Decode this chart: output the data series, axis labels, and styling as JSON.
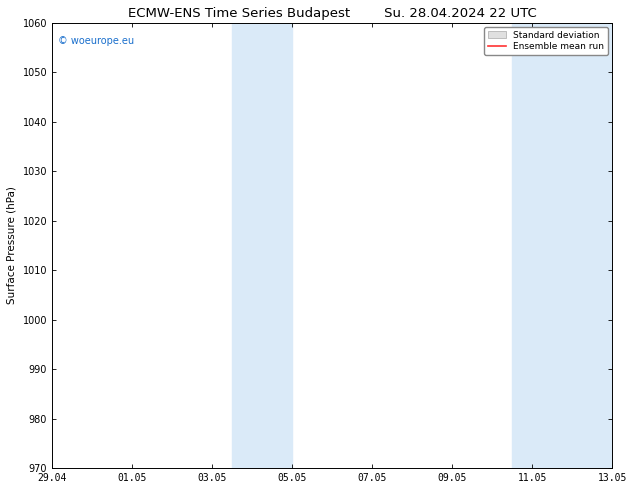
{
  "title": "ECMW-ENS Time Series Budapest",
  "title2": "Su. 28.04.2024 22 UTC",
  "ylabel": "Surface Pressure (hPa)",
  "ylim": [
    970,
    1060
  ],
  "yticks": [
    970,
    980,
    990,
    1000,
    1010,
    1020,
    1030,
    1040,
    1050,
    1060
  ],
  "xtick_labels": [
    "29.04",
    "01.05",
    "03.05",
    "05.05",
    "07.05",
    "09.05",
    "11.05",
    "13.05"
  ],
  "xtick_positions": [
    0,
    2,
    4,
    6,
    8,
    10,
    12,
    14
  ],
  "xlim": [
    0,
    14
  ],
  "shaded_bands": [
    {
      "start": 4.5,
      "end": 6.0
    },
    {
      "start": 11.5,
      "end": 14.0
    }
  ],
  "shade_color": "#daeaf8",
  "watermark_text": "© woeurope.eu",
  "watermark_color": "#1a6fcc",
  "legend_std_color": "#e0e0e0",
  "legend_std_edge": "#aaaaaa",
  "legend_mean_color": "#ff3333",
  "background_color": "#ffffff",
  "title_fontsize": 9.5,
  "axis_label_fontsize": 7.5,
  "tick_fontsize": 7
}
